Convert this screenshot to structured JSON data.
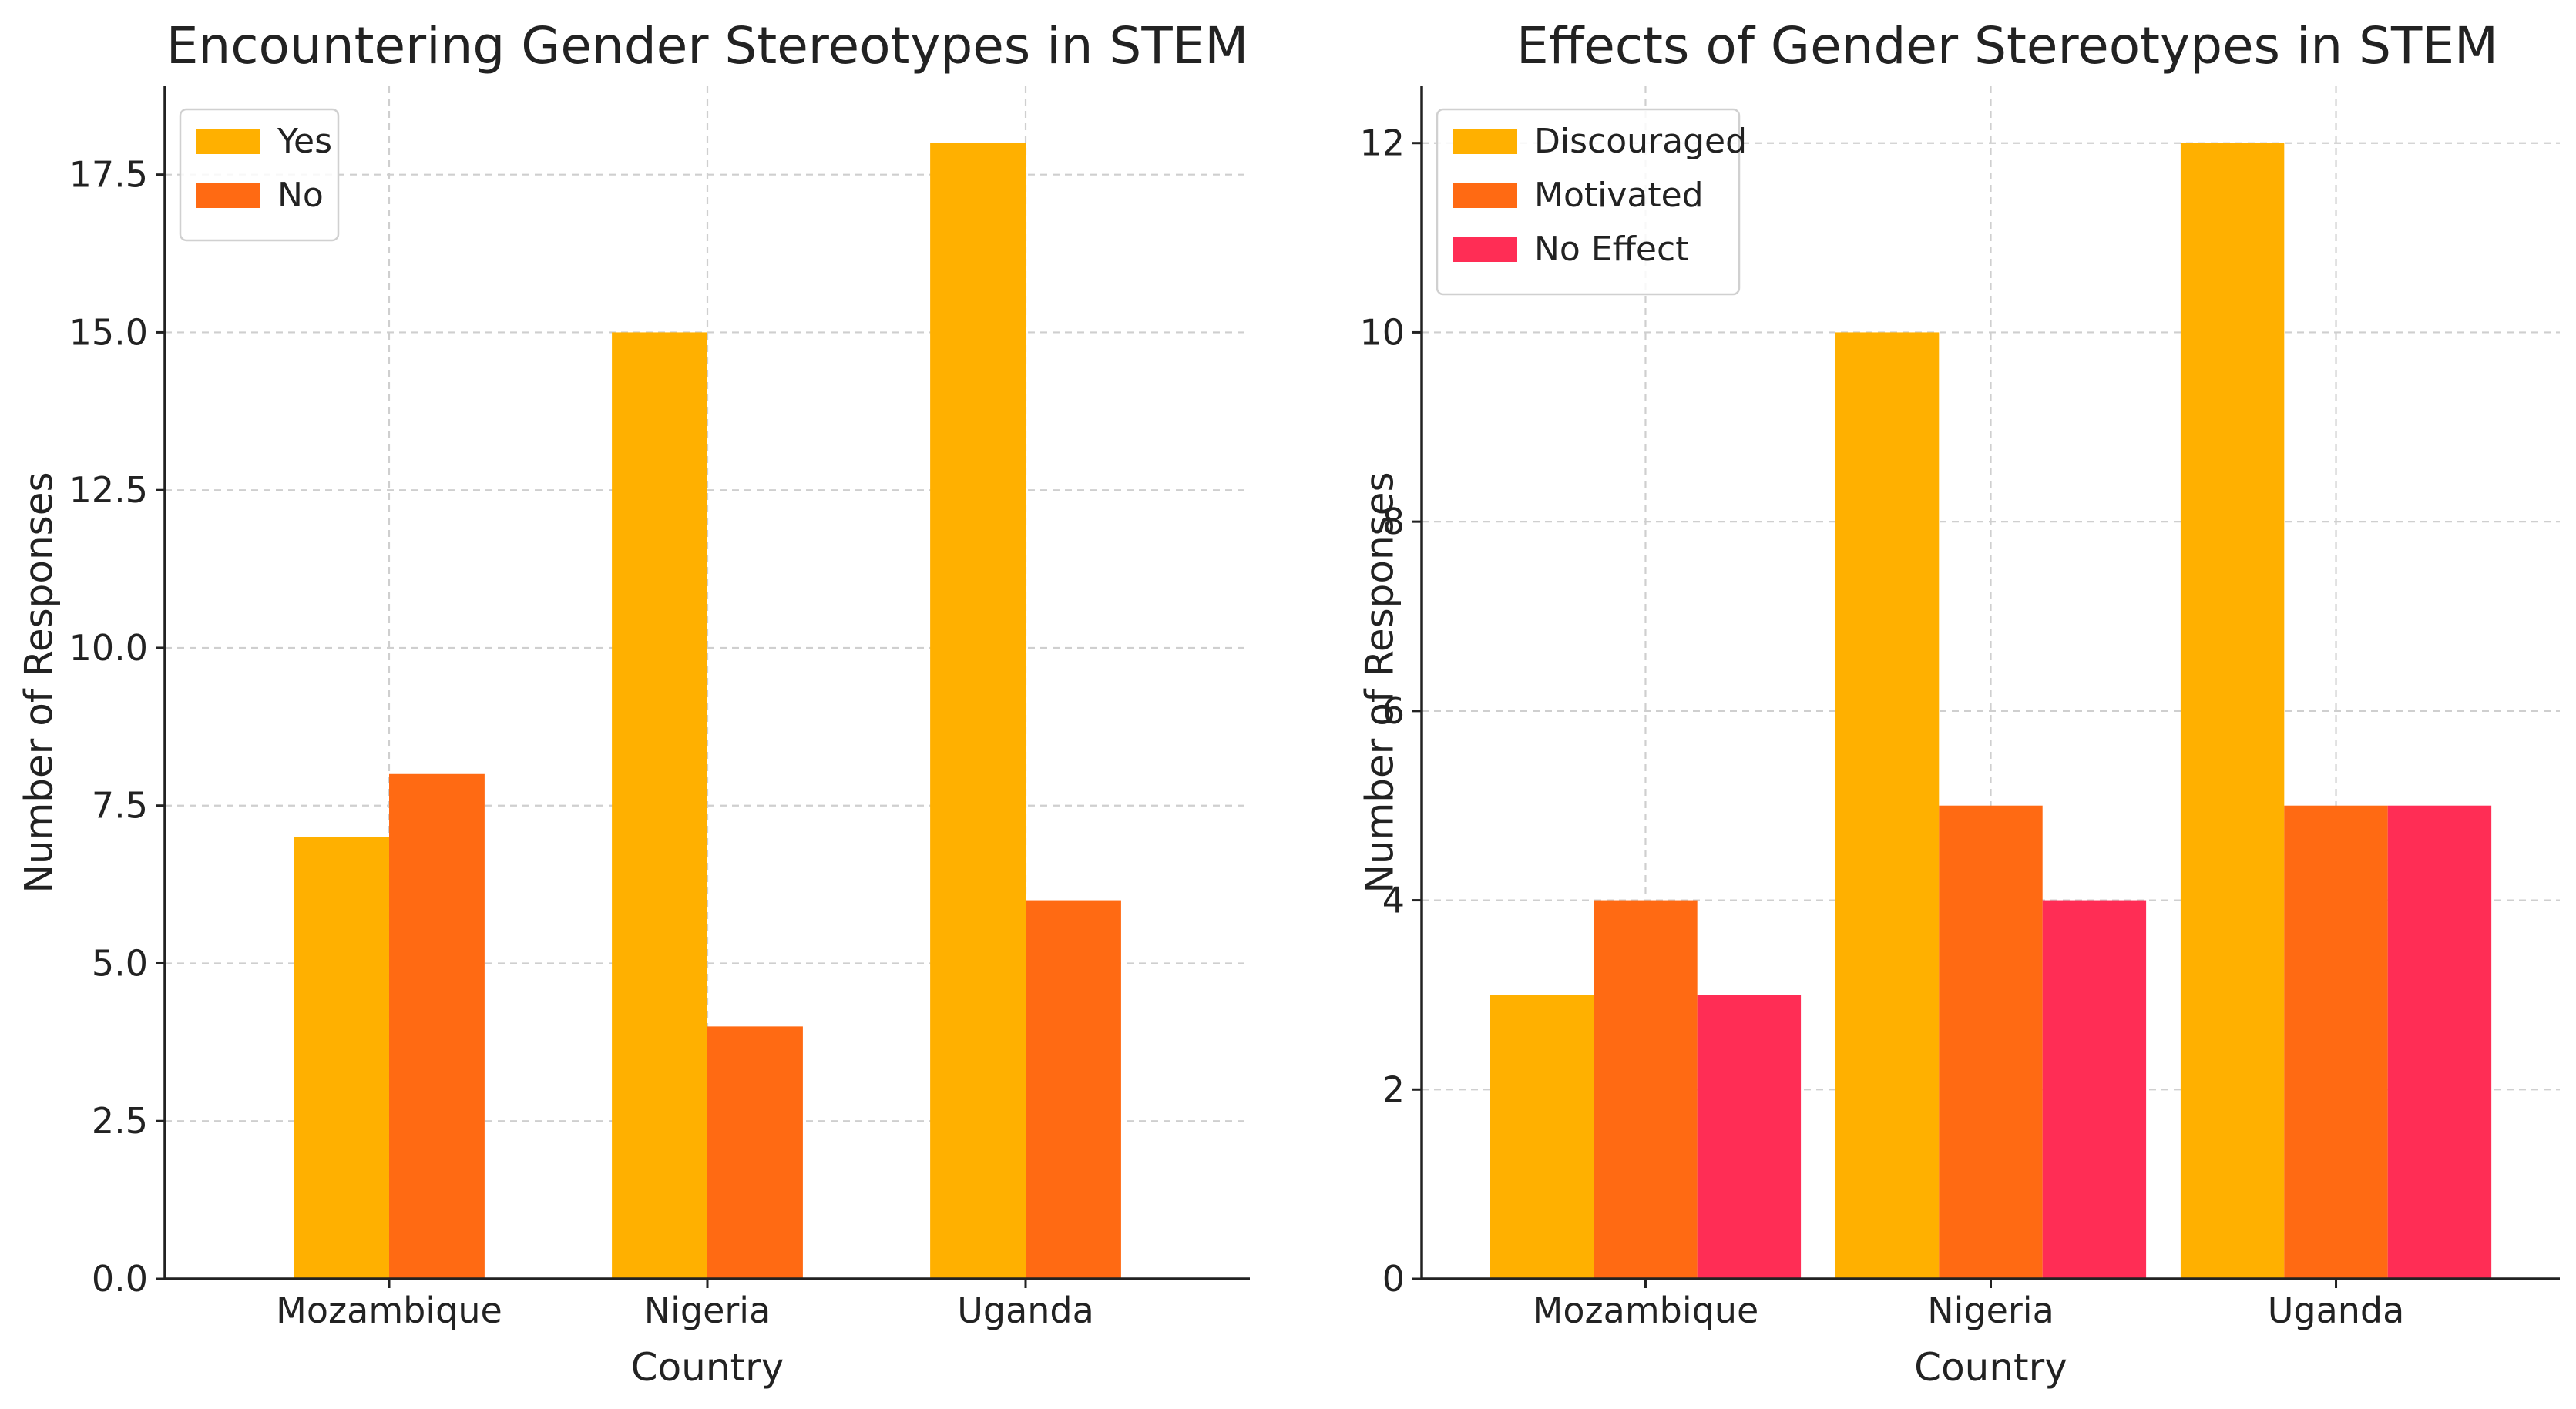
{
  "chart_data": [
    {
      "type": "bar",
      "title": "Encountering Gender Stereotypes in STEM",
      "xlabel": "Country",
      "ylabel": "Number of Responses",
      "categories": [
        "Mozambique",
        "Nigeria",
        "Uganda"
      ],
      "series": [
        {
          "name": "Yes",
          "color": "#ffb000",
          "values": [
            7,
            15,
            18
          ]
        },
        {
          "name": "No",
          "color": "#ff6a13",
          "values": [
            8,
            4,
            6
          ]
        }
      ],
      "ylim": [
        0,
        18.9
      ],
      "yticks": [
        "0.0",
        "2.5",
        "5.0",
        "7.5",
        "10.0",
        "12.5",
        "15.0",
        "17.5"
      ],
      "grid": true,
      "legend": "top-left"
    },
    {
      "type": "bar",
      "title": "Effects of Gender Stereotypes in STEM",
      "xlabel": "Country",
      "ylabel": "Number of Responses",
      "categories": [
        "Mozambique",
        "Nigeria",
        "Uganda"
      ],
      "series": [
        {
          "name": "Discouraged",
          "color": "#ffb000",
          "values": [
            3,
            10,
            12
          ]
        },
        {
          "name": "Motivated",
          "color": "#ff6a13",
          "values": [
            4,
            5,
            5
          ]
        },
        {
          "name": "No Effect",
          "color": "#ff2d55",
          "values": [
            3,
            4,
            5
          ]
        }
      ],
      "ylim": [
        0,
        12.6
      ],
      "yticks": [
        "0",
        "2",
        "4",
        "6",
        "8",
        "10",
        "12"
      ],
      "grid": true,
      "legend": "top-left"
    }
  ]
}
